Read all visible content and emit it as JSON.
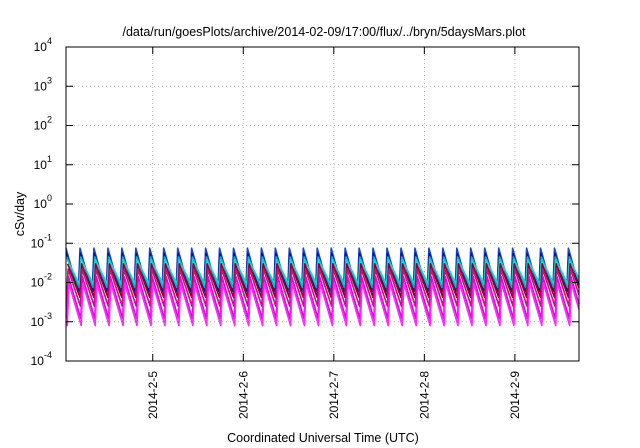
{
  "chart_data": {
    "type": "line",
    "title": "/data/run/goesPlots/archive/2014-02-09/17:00/flux/../bryn/5daysMars.plot",
    "xlabel": "Coordinated Universal Time (UTC)",
    "ylabel": "cSv/day",
    "yscale": "log",
    "ylim": [
      0.0001,
      10000
    ],
    "xlim": [
      "2014-02-04 01:00",
      "2014-02-09 17:00"
    ],
    "grid": true,
    "legend": "none",
    "y_tick_labels": [
      {
        "base": "10",
        "exp": "-4"
      },
      {
        "base": "10",
        "exp": "-3"
      },
      {
        "base": "10",
        "exp": "-2"
      },
      {
        "base": "10",
        "exp": "-1"
      },
      {
        "base": "10",
        "exp": "0"
      },
      {
        "base": "10",
        "exp": "1"
      },
      {
        "base": "10",
        "exp": "2"
      },
      {
        "base": "10",
        "exp": "3"
      },
      {
        "base": "10",
        "exp": "4"
      }
    ],
    "x_tick_labels": [
      "2014-2-5",
      "2014-2-6",
      "2014-2-7",
      "2014-2-8",
      "2014-2-9"
    ],
    "series_pattern": {
      "period_hours": 3.7,
      "cycles_per_day": 6.5,
      "description_of_shape": "sawtooth"
    },
    "series": [
      {
        "color": "#1a47d6",
        "peak": 0.075,
        "trough": 0.0055
      },
      {
        "color": "#0a1a8a",
        "peak": 0.055,
        "trough": 0.006
      },
      {
        "color": "#18a7c4",
        "peak": 0.045,
        "trough": 0.0075
      },
      {
        "color": "#1fd1c8",
        "peak": 0.038,
        "trough": 0.009
      },
      {
        "color": "#8a0032",
        "peak": 0.03,
        "trough": 0.0042
      },
      {
        "color": "#c0147a",
        "peak": 0.022,
        "trough": 0.0025
      },
      {
        "color": "#d10fd1",
        "peak": 0.014,
        "trough": 0.0012
      },
      {
        "color": "#ff29ff",
        "peak": 0.0095,
        "trough": 0.0008
      }
    ]
  }
}
